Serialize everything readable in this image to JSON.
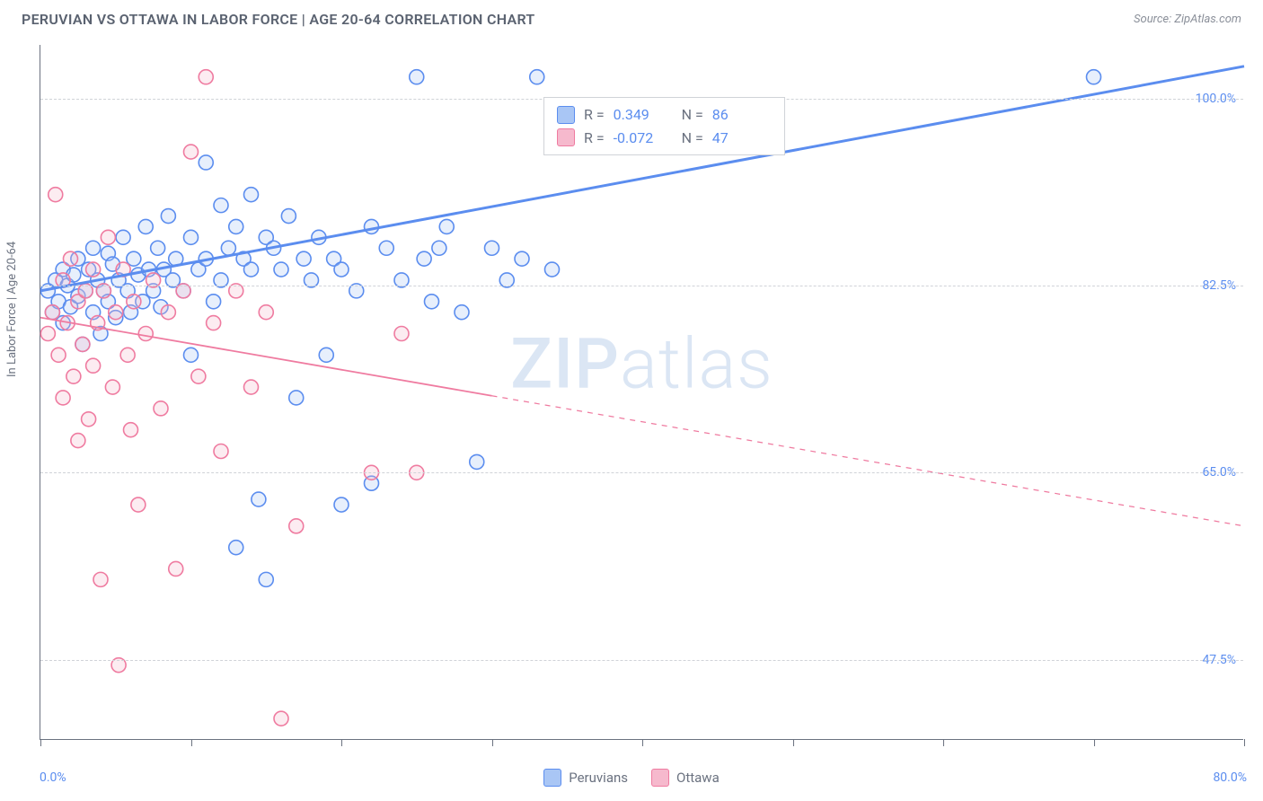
{
  "header": {
    "title": "PERUVIAN VS OTTAWA IN LABOR FORCE | AGE 20-64 CORRELATION CHART",
    "source": "Source: ZipAtlas.com"
  },
  "chart": {
    "type": "scatter",
    "y_axis_label": "In Labor Force | Age 20-64",
    "xlim": [
      0,
      80
    ],
    "ylim": [
      40,
      105
    ],
    "x_ticks": [
      0,
      10,
      20,
      30,
      40,
      50,
      60,
      70,
      80
    ],
    "x_tick_labels": {
      "min": "0.0%",
      "max": "80.0%"
    },
    "y_ticks": [
      47.5,
      65.0,
      82.5,
      100.0
    ],
    "y_tick_labels": [
      "47.5%",
      "65.0%",
      "82.5%",
      "100.0%"
    ],
    "background_color": "#ffffff",
    "grid_color": "#d0d3d8",
    "axis_color": "#6b7280",
    "tick_label_color": "#5b8def",
    "marker_radius": 8,
    "marker_stroke_width": 1.6,
    "marker_fill_opacity": 0.28,
    "watermark": "ZIPatlas",
    "series": [
      {
        "name": "Peruvians",
        "color": "#5b8def",
        "fill": "#a9c6f5",
        "r": 0.349,
        "n": 86,
        "trend": {
          "x1": 0,
          "y1": 82.0,
          "x2": 80,
          "y2": 103.0,
          "solid_until_x": 80,
          "stroke_width": 3
        },
        "points": [
          [
            0.5,
            82
          ],
          [
            0.8,
            80
          ],
          [
            1.0,
            83
          ],
          [
            1.2,
            81
          ],
          [
            1.5,
            84
          ],
          [
            1.5,
            79
          ],
          [
            1.8,
            82.5
          ],
          [
            2.0,
            80.5
          ],
          [
            2.2,
            83.5
          ],
          [
            2.5,
            81.5
          ],
          [
            2.5,
            85
          ],
          [
            2.8,
            77
          ],
          [
            3.0,
            82
          ],
          [
            3.2,
            84
          ],
          [
            3.5,
            86
          ],
          [
            3.5,
            80
          ],
          [
            3.8,
            83
          ],
          [
            4.0,
            78
          ],
          [
            4.2,
            82
          ],
          [
            4.5,
            85.5
          ],
          [
            4.5,
            81
          ],
          [
            4.8,
            84.5
          ],
          [
            5.0,
            79.5
          ],
          [
            5.2,
            83
          ],
          [
            5.5,
            87
          ],
          [
            5.8,
            82
          ],
          [
            6.0,
            80
          ],
          [
            6.2,
            85
          ],
          [
            6.5,
            83.5
          ],
          [
            6.8,
            81
          ],
          [
            7.0,
            88
          ],
          [
            7.2,
            84
          ],
          [
            7.5,
            82
          ],
          [
            7.8,
            86
          ],
          [
            8.0,
            80.5
          ],
          [
            8.2,
            84
          ],
          [
            8.5,
            89
          ],
          [
            8.8,
            83
          ],
          [
            9.0,
            85
          ],
          [
            9.5,
            82
          ],
          [
            10,
            87
          ],
          [
            10,
            76
          ],
          [
            10.5,
            84
          ],
          [
            11,
            94
          ],
          [
            11,
            85
          ],
          [
            11.5,
            81
          ],
          [
            12,
            90
          ],
          [
            12,
            83
          ],
          [
            12.5,
            86
          ],
          [
            13,
            88
          ],
          [
            13,
            58
          ],
          [
            13.5,
            85
          ],
          [
            14,
            91
          ],
          [
            14,
            84
          ],
          [
            14.5,
            62.5
          ],
          [
            15,
            87
          ],
          [
            15,
            55
          ],
          [
            15.5,
            86
          ],
          [
            16,
            84
          ],
          [
            16.5,
            89
          ],
          [
            17,
            72
          ],
          [
            17.5,
            85
          ],
          [
            18,
            83
          ],
          [
            18.5,
            87
          ],
          [
            19,
            76
          ],
          [
            19.5,
            85
          ],
          [
            20,
            84
          ],
          [
            20,
            62
          ],
          [
            21,
            82
          ],
          [
            22,
            88
          ],
          [
            22,
            64
          ],
          [
            23,
            86
          ],
          [
            24,
            83
          ],
          [
            25,
            102
          ],
          [
            25.5,
            85
          ],
          [
            26,
            81
          ],
          [
            26.5,
            86
          ],
          [
            27,
            88
          ],
          [
            28,
            80
          ],
          [
            29,
            66
          ],
          [
            30,
            86
          ],
          [
            31,
            83
          ],
          [
            32,
            85
          ],
          [
            33,
            102
          ],
          [
            34,
            84
          ],
          [
            70,
            102
          ]
        ]
      },
      {
        "name": "Ottawa",
        "color": "#ef7ba0",
        "fill": "#f6b9cd",
        "r": -0.072,
        "n": 47,
        "trend": {
          "x1": 0,
          "y1": 79.5,
          "x2": 80,
          "y2": 60.0,
          "solid_until_x": 30,
          "stroke_width": 1.8
        },
        "points": [
          [
            0.5,
            78
          ],
          [
            0.8,
            80
          ],
          [
            1.0,
            91
          ],
          [
            1.2,
            76
          ],
          [
            1.5,
            83
          ],
          [
            1.5,
            72
          ],
          [
            1.8,
            79
          ],
          [
            2.0,
            85
          ],
          [
            2.2,
            74
          ],
          [
            2.5,
            81
          ],
          [
            2.5,
            68
          ],
          [
            2.8,
            77
          ],
          [
            3.0,
            82
          ],
          [
            3.2,
            70
          ],
          [
            3.5,
            84
          ],
          [
            3.5,
            75
          ],
          [
            3.8,
            79
          ],
          [
            4.0,
            55
          ],
          [
            4.2,
            82
          ],
          [
            4.5,
            87
          ],
          [
            4.8,
            73
          ],
          [
            5.0,
            80
          ],
          [
            5.2,
            47
          ],
          [
            5.5,
            84
          ],
          [
            5.8,
            76
          ],
          [
            6.0,
            69
          ],
          [
            6.2,
            81
          ],
          [
            6.5,
            62
          ],
          [
            7.0,
            78
          ],
          [
            7.5,
            83
          ],
          [
            8.0,
            71
          ],
          [
            8.5,
            80
          ],
          [
            9.0,
            56
          ],
          [
            9.5,
            82
          ],
          [
            10,
            95
          ],
          [
            10.5,
            74
          ],
          [
            11,
            102
          ],
          [
            11.5,
            79
          ],
          [
            12,
            67
          ],
          [
            13,
            82
          ],
          [
            14,
            73
          ],
          [
            15,
            80
          ],
          [
            16,
            42
          ],
          [
            17,
            60
          ],
          [
            22,
            65
          ],
          [
            24,
            78
          ],
          [
            25,
            65
          ]
        ]
      }
    ],
    "legend_bottom": [
      "Peruvians",
      "Ottawa"
    ]
  }
}
